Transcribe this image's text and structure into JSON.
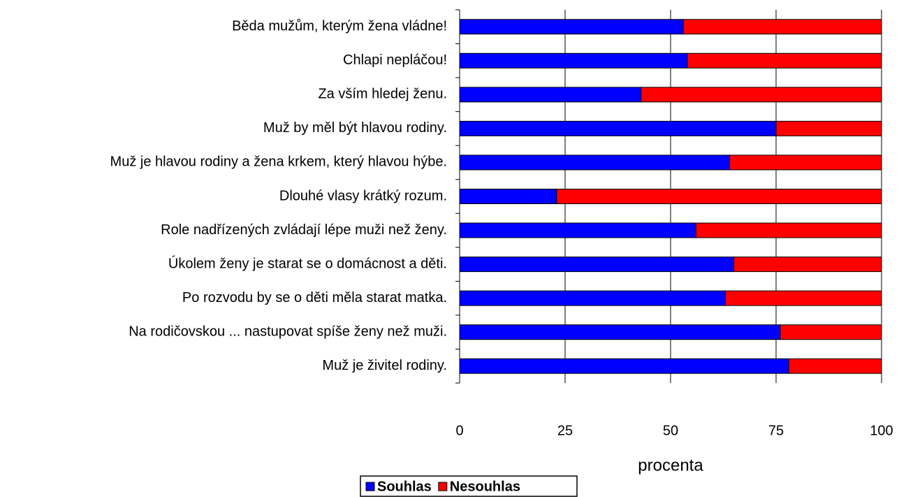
{
  "chart_data": {
    "type": "stacked_barh",
    "categories": [
      "Běda mužům, kterým žena vládne!",
      "Chlapi nepláčou!",
      "Za vším hledej ženu.",
      "Muž by měl být hlavou rodiny.",
      "Muž je hlavou rodiny a žena krkem, který hlavou hýbe.",
      "Dlouhé vlasy krátký rozum.",
      "Role nadřízených zvládají lépe muži než ženy.",
      "Úkolem ženy je starat se o domácnost a děti.",
      "Po rozvodu by se o děti měla starat matka.",
      "Na rodičovskou ... nastupovat spíše ženy než muži.",
      "Muž je živitel rodiny."
    ],
    "series": [
      {
        "name": "Souhlas",
        "color": "#0000ff",
        "values": [
          53,
          54,
          43,
          75,
          64,
          23,
          56,
          65,
          63,
          76,
          78
        ]
      },
      {
        "name": "Nesouhlas",
        "color": "#ff0000",
        "values": [
          47,
          46,
          57,
          25,
          36,
          77,
          44,
          35,
          37,
          24,
          22
        ]
      }
    ],
    "xlabel": "procenta",
    "xlim": [
      0,
      100
    ],
    "xticks": [
      0,
      25,
      50,
      75,
      100
    ],
    "grid": true,
    "legend": "bottom"
  }
}
